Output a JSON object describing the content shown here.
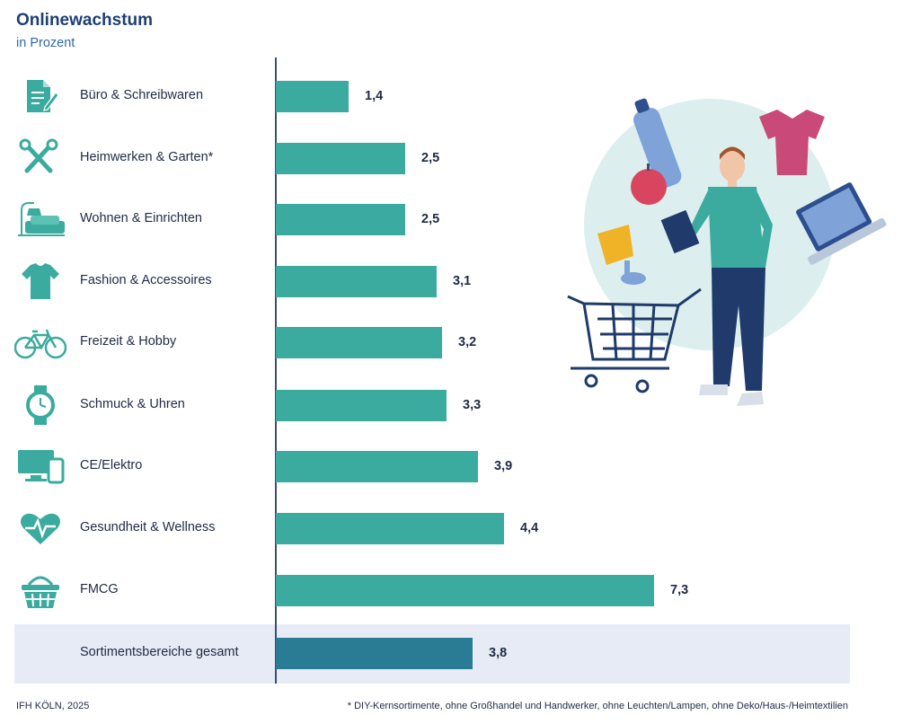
{
  "header": {
    "title": "Onlinewachstum",
    "subtitle": "in Prozent"
  },
  "colors": {
    "bar": "#3aab9e",
    "bar_total": "#2a7c94",
    "total_background": "#e7ebf5",
    "title": "#1d3f73",
    "subtitle": "#2f6aa8"
  },
  "chart_data": {
    "type": "bar",
    "orientation": "horizontal",
    "title": "Onlinewachstum",
    "subtitle": "in Prozent",
    "categories": [
      "Büro & Schreibwaren",
      "Heimwerken & Garten*",
      "Wohnen & Einrichten",
      "Fashion & Accessoires",
      "Freizeit & Hobby",
      "Schmuck & Uhren",
      "CE/Elektro",
      "Gesundheit & Wellness",
      "FMCG",
      "Sortimentsbereiche gesamt"
    ],
    "values": [
      1.4,
      2.5,
      2.5,
      3.1,
      3.2,
      3.3,
      3.9,
      4.4,
      7.3,
      3.8
    ],
    "value_labels": [
      "1,4",
      "2,5",
      "2,5",
      "3,1",
      "3,2",
      "3,3",
      "3,9",
      "4,4",
      "7,3",
      "3,8"
    ],
    "icons": [
      "document-pen-icon",
      "tools-icon",
      "sofa-lamp-icon",
      "tshirt-icon",
      "bicycle-icon",
      "watch-icon",
      "devices-icon",
      "heart-pulse-icon",
      "basket-icon",
      ""
    ],
    "xlim": [
      0,
      7.3
    ],
    "grid": false,
    "legend": "none"
  },
  "footer": {
    "source": "IFH KÖLN, 2025",
    "note": "* DIY-Kernsortimente, ohne Großhandel und Handwerker, ohne Leuchten/Lampen, ohne Deko/Haus-/Heimtextilien"
  }
}
